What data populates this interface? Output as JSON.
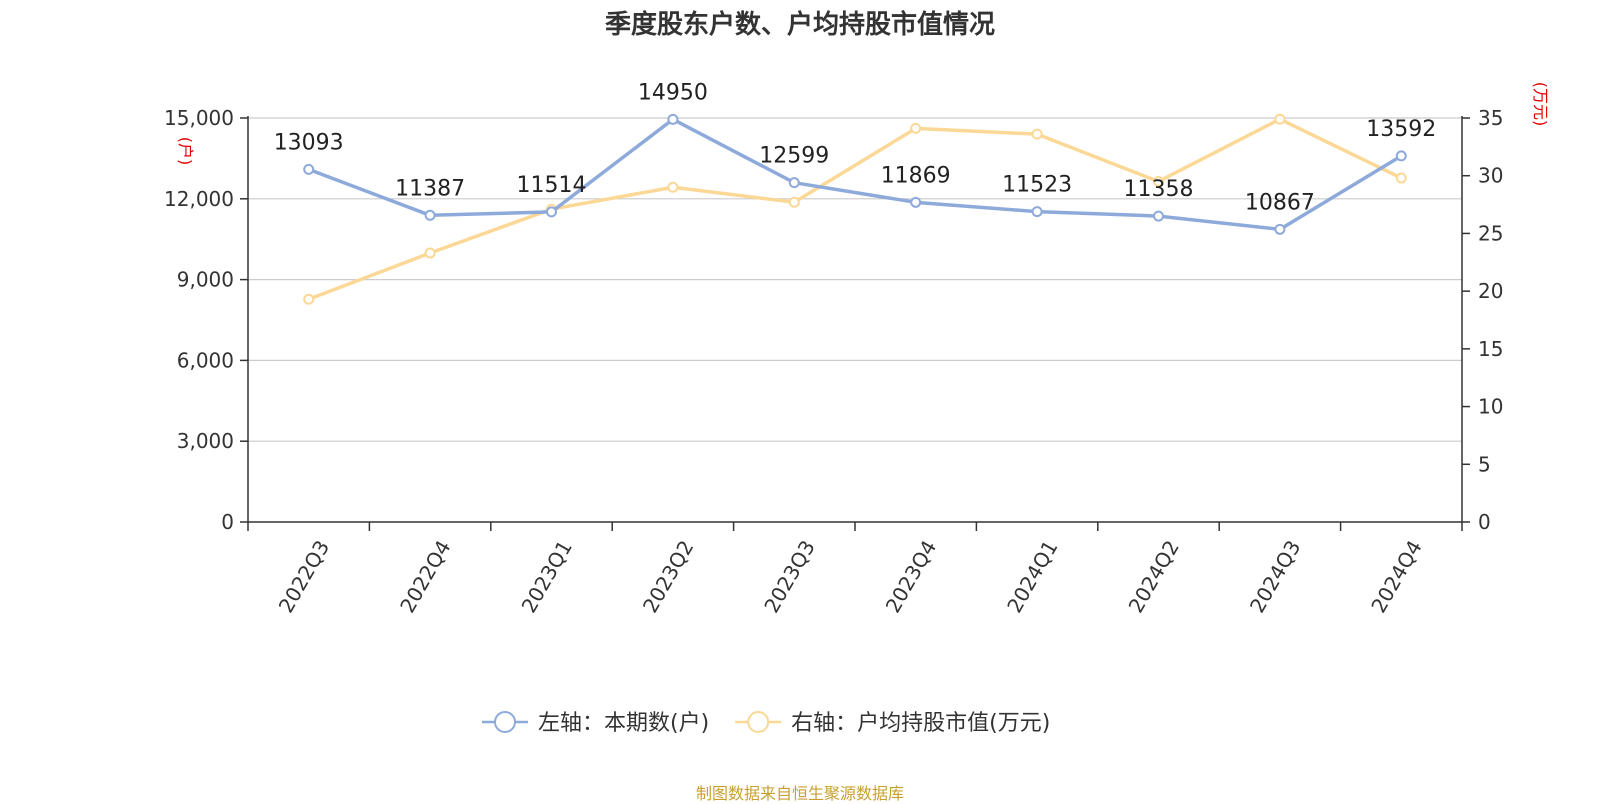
{
  "title": "季度股东户数、户均持股市值情况",
  "source": "制图数据来自恒生聚源数据库",
  "chart_data": {
    "type": "line",
    "title": "季度股东户数、户均持股市值情况",
    "categories": [
      "2022Q3",
      "2022Q4",
      "2023Q1",
      "2023Q2",
      "2023Q3",
      "2023Q4",
      "2024Q1",
      "2024Q2",
      "2024Q3",
      "2024Q4"
    ],
    "left_axis": {
      "unit_label": "(户)",
      "ylim": [
        0,
        15000
      ],
      "ticks": [
        "0",
        "3,000",
        "6,000",
        "9,000",
        "12,000",
        "15,000"
      ],
      "tick_values": [
        0,
        3000,
        6000,
        9000,
        12000,
        15000
      ]
    },
    "right_axis": {
      "unit_label": "(万元)",
      "ylim": [
        0,
        35
      ],
      "ticks": [
        "0",
        "5",
        "10",
        "15",
        "20",
        "25",
        "30",
        "35"
      ],
      "tick_values": [
        0,
        5,
        10,
        15,
        20,
        25,
        30,
        35
      ]
    },
    "grid": true,
    "legend_position": "bottom",
    "series": [
      {
        "name": "左轴：本期数(户)",
        "axis": "left",
        "color": "#8eaadb",
        "values": [
          13093,
          11387,
          11514,
          14950,
          12599,
          11869,
          11523,
          11358,
          10867,
          13592
        ],
        "labels": [
          "13093",
          "11387",
          "11514",
          "14950",
          "12599",
          "11869",
          "11523",
          "11358",
          "10867",
          "13592"
        ]
      },
      {
        "name": "右轴：户均持股市值(万元)",
        "axis": "right",
        "color": "#fbd896",
        "values": [
          19.3,
          23.3,
          27.1,
          29.0,
          27.7,
          34.1,
          33.6,
          29.5,
          34.9,
          29.8
        ]
      }
    ]
  }
}
